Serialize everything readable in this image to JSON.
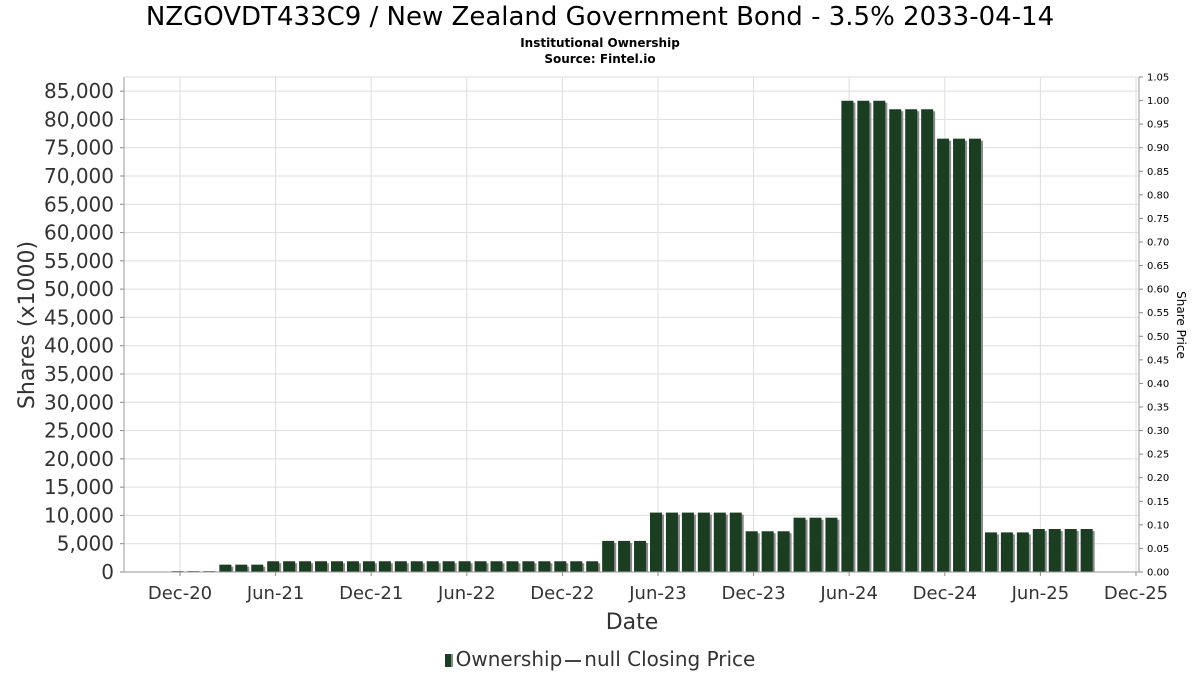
{
  "chart_data": {
    "type": "bar",
    "title": "NZGOVDT433C9 / New Zealand Government Bond - 3.5% 2033-04-14",
    "subtitle": "Institutional Ownership",
    "source": "Source: Fintel.io",
    "xlabel": "Date",
    "ylabel": "Shares (x1000)",
    "y2label": "Share Price",
    "ylim": [
      0,
      87500
    ],
    "y2lim": [
      0,
      1.05
    ],
    "yticks": [
      "0",
      "5,000",
      "10,000",
      "15,000",
      "20,000",
      "25,000",
      "30,000",
      "35,000",
      "40,000",
      "45,000",
      "50,000",
      "55,000",
      "60,000",
      "65,000",
      "70,000",
      "75,000",
      "80,000",
      "85,000"
    ],
    "y2ticks": [
      "0.00",
      "0.05",
      "0.10",
      "0.15",
      "0.20",
      "0.25",
      "0.30",
      "0.35",
      "0.40",
      "0.45",
      "0.50",
      "0.55",
      "0.60",
      "0.65",
      "0.70",
      "0.75",
      "0.80",
      "0.85",
      "0.90",
      "0.95",
      "1.00",
      "1.05"
    ],
    "xticks": [
      "Dec-20",
      "Jun-21",
      "Dec-21",
      "Jun-22",
      "Dec-22",
      "Jun-23",
      "Dec-23",
      "Jun-24",
      "Dec-24",
      "Jun-25",
      "Dec-25"
    ],
    "grid": true,
    "legend_position": "bottom",
    "series": [
      {
        "name": "Ownership",
        "color": "#1b3d22",
        "values": [
          150,
          150,
          150,
          1300,
          1300,
          1300,
          1900,
          1900,
          1900,
          1900,
          1900,
          1900,
          1900,
          1900,
          1900,
          1900,
          1900,
          1900,
          1900,
          1900,
          1900,
          1900,
          1900,
          1900,
          1900,
          1900,
          1900,
          5500,
          5500,
          5500,
          10500,
          10500,
          10500,
          10500,
          10500,
          10500,
          7200,
          7200,
          7200,
          9600,
          9600,
          9600,
          83300,
          83300,
          83300,
          81800,
          81800,
          81800,
          76600,
          76600,
          76600,
          7000,
          7000,
          7000,
          7600,
          7600,
          7600,
          7600
        ]
      },
      {
        "name": "null Closing Price",
        "color": "#444444",
        "values": []
      }
    ]
  }
}
